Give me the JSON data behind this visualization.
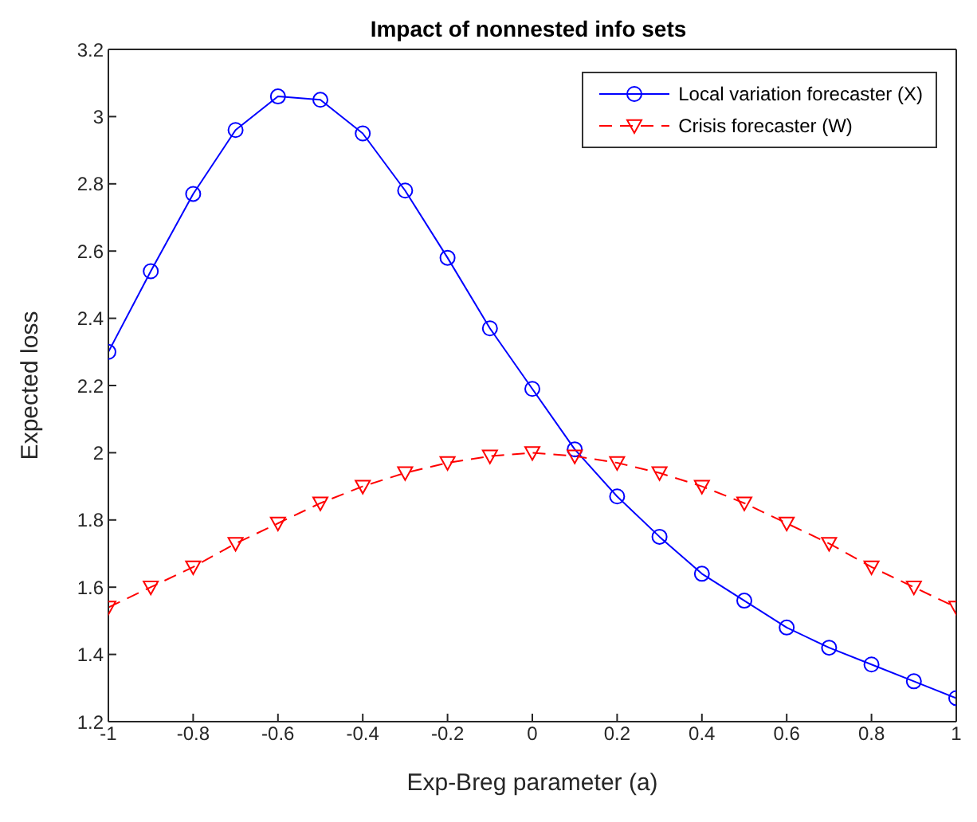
{
  "chart_data": {
    "type": "line",
    "title": "Impact of nonnested info sets",
    "xlabel": "Exp-Breg parameter (a)",
    "ylabel": "Expected loss",
    "x": [
      -1,
      -0.9,
      -0.8,
      -0.7,
      -0.6,
      -0.5,
      -0.4,
      -0.3,
      -0.2,
      -0.1,
      0,
      0.1,
      0.2,
      0.3,
      0.4,
      0.5,
      0.6,
      0.7,
      0.8,
      0.9,
      1
    ],
    "series": [
      {
        "name": "Local variation forecaster (X)",
        "color": "#0000ff",
        "marker": "circle",
        "line_style": "solid",
        "values": [
          2.3,
          2.54,
          2.77,
          2.96,
          3.06,
          3.05,
          2.95,
          2.78,
          2.58,
          2.37,
          2.19,
          2.01,
          1.87,
          1.75,
          1.64,
          1.56,
          1.48,
          1.42,
          1.37,
          1.32,
          1.27
        ]
      },
      {
        "name": "Crisis forecaster (W)",
        "color": "#ff0000",
        "marker": "triangle",
        "line_style": "dashed",
        "values": [
          1.54,
          1.6,
          1.66,
          1.73,
          1.79,
          1.85,
          1.9,
          1.94,
          1.97,
          1.99,
          2.0,
          1.99,
          1.97,
          1.94,
          1.9,
          1.85,
          1.79,
          1.73,
          1.66,
          1.6,
          1.54
        ]
      }
    ],
    "xlim": [
      -1,
      1
    ],
    "xticks": [
      -1,
      -0.8,
      -0.6,
      -0.4,
      -0.2,
      0,
      0.2,
      0.4,
      0.6,
      0.8,
      1
    ],
    "ylim": [
      1.2,
      3.2
    ],
    "yticks": [
      1.2,
      1.4,
      1.6,
      1.8,
      2,
      2.2,
      2.4,
      2.6,
      2.8,
      3,
      3.2
    ],
    "grid": false,
    "legend": "top right"
  }
}
